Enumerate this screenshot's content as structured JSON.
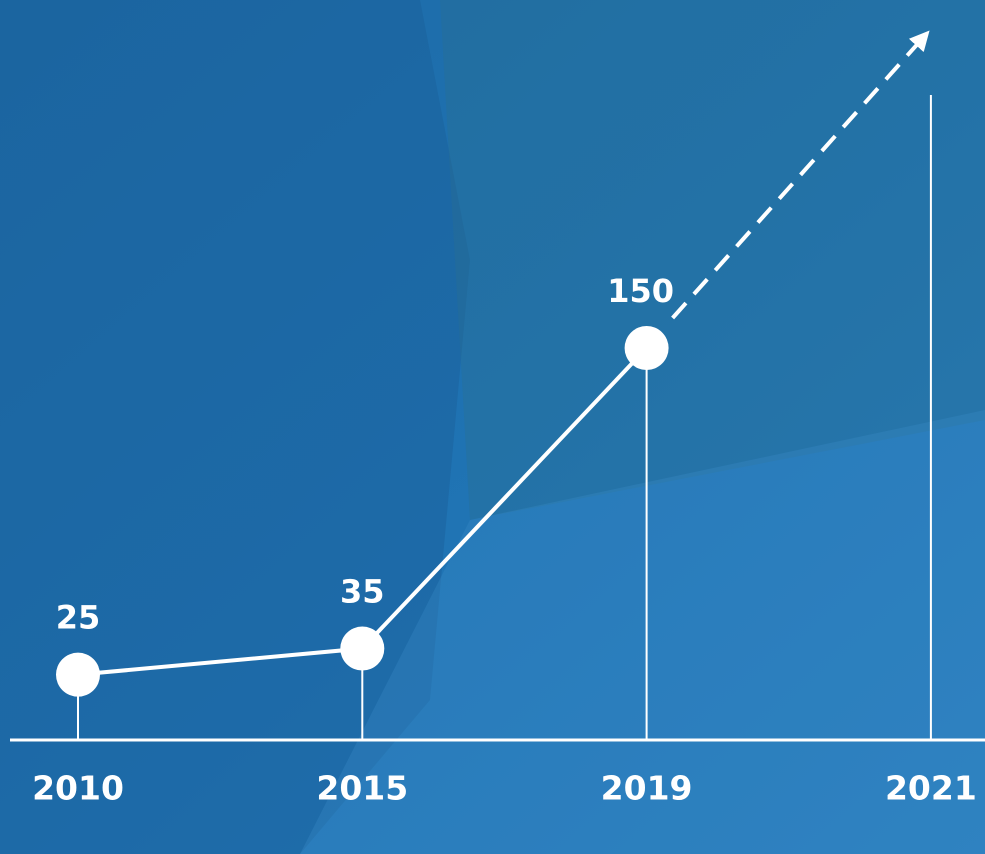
{
  "chart_data": {
    "type": "line",
    "categories": [
      "2010",
      "2015",
      "2019",
      "2021"
    ],
    "values": [
      25,
      35,
      150,
      null
    ],
    "color": "#ffffff"
  }
}
